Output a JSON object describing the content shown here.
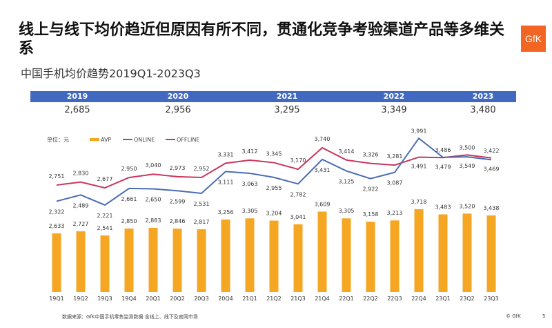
{
  "title": "线上与线下均价趋近但原因有所不同，贯通化竞争考验渠道产品等多维关系",
  "subtitle": "中国手机均价趋势2019Q1-2023Q3",
  "logo": "GfK",
  "yearly": [
    {
      "year": "2019",
      "value": "2,685"
    },
    {
      "year": "2020",
      "value": "2,956"
    },
    {
      "year": "2021",
      "value": "3,295"
    },
    {
      "year": "2022",
      "value": "3,349"
    },
    {
      "year": "2023",
      "value": "3,480"
    }
  ],
  "footer": {
    "source": "数据来源：GfK中国手机零售监测数据 含线上、线下及官网市场",
    "copyright": "© GfK",
    "page": "5"
  },
  "chart_data": {
    "type": "bar+line",
    "unit_label": "单位：元",
    "legend_position": "top-left",
    "grid": false,
    "categories": [
      "19Q1",
      "19Q2",
      "19Q3",
      "19Q4",
      "20Q1",
      "20Q2",
      "20Q3",
      "20Q4",
      "21Q1",
      "21Q2",
      "21Q3",
      "21Q4",
      "22Q1",
      "22Q2",
      "22Q3",
      "22Q4",
      "23Q1",
      "23Q2",
      "23Q3"
    ],
    "series": [
      {
        "name": "AVP",
        "type": "bar",
        "color": "#f5a623",
        "values": [
          2633,
          2727,
          2541,
          2850,
          2883,
          2846,
          2817,
          3256,
          3305,
          3204,
          3041,
          3609,
          3305,
          3158,
          3213,
          3718,
          3483,
          3520,
          3438
        ]
      },
      {
        "name": "ONLINE",
        "type": "line",
        "color": "#4a6cb5",
        "values": [
          2322,
          2489,
          2221,
          2661,
          2650,
          2599,
          2531,
          3111,
          3063,
          2955,
          2782,
          3431,
          3125,
          2922,
          3087,
          3991,
          3486,
          3500,
          3422
        ]
      },
      {
        "name": "OFFLINE",
        "type": "line",
        "color": "#c8365e",
        "values": [
          2751,
          2830,
          2677,
          2950,
          3040,
          2973,
          2952,
          3331,
          3412,
          3345,
          3170,
          3740,
          3414,
          3326,
          3281,
          3491,
          3479,
          3549,
          3469
        ]
      }
    ]
  }
}
